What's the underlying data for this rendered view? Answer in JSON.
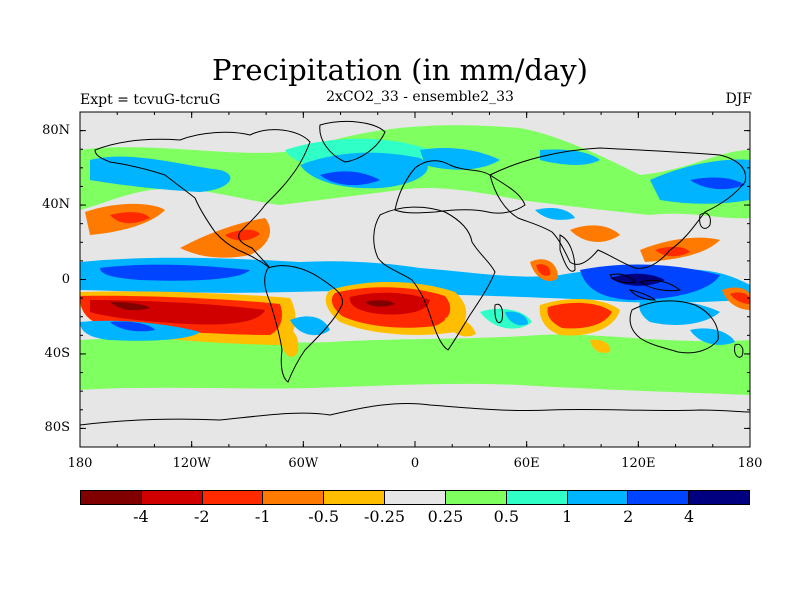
{
  "title": "Precipitation (in mm/day)",
  "subtitle": "2xCO2_33 - ensemble2_33",
  "expt_label": "Expt = tcvuG-tcruG",
  "season": "DJF",
  "lat_ticks": [
    {
      "value": 80,
      "label": "80N"
    },
    {
      "value": 40,
      "label": "40N"
    },
    {
      "value": 0,
      "label": "0"
    },
    {
      "value": -40,
      "label": "40S"
    },
    {
      "value": -80,
      "label": "80S"
    }
  ],
  "lon_ticks": [
    {
      "value": -180,
      "label": "180"
    },
    {
      "value": -120,
      "label": "120W"
    },
    {
      "value": -60,
      "label": "60W"
    },
    {
      "value": 0,
      "label": "0"
    },
    {
      "value": 60,
      "label": "60E"
    },
    {
      "value": 120,
      "label": "120E"
    },
    {
      "value": 180,
      "label": "180"
    }
  ],
  "colorbar": {
    "colors": [
      "#800000",
      "#d10000",
      "#ff2a00",
      "#ff7a00",
      "#ffbf00",
      "#e6e6e6",
      "#80ff60",
      "#30ffc8",
      "#00b4ff",
      "#0044ff",
      "#000080"
    ],
    "labels": [
      "-4",
      "-2",
      "-1",
      "-0.5",
      "-0.25",
      "0.25",
      "0.5",
      "1",
      "2",
      "4"
    ]
  },
  "map_colors": {
    "background": "#e6e6e6",
    "coast": "#000000"
  }
}
